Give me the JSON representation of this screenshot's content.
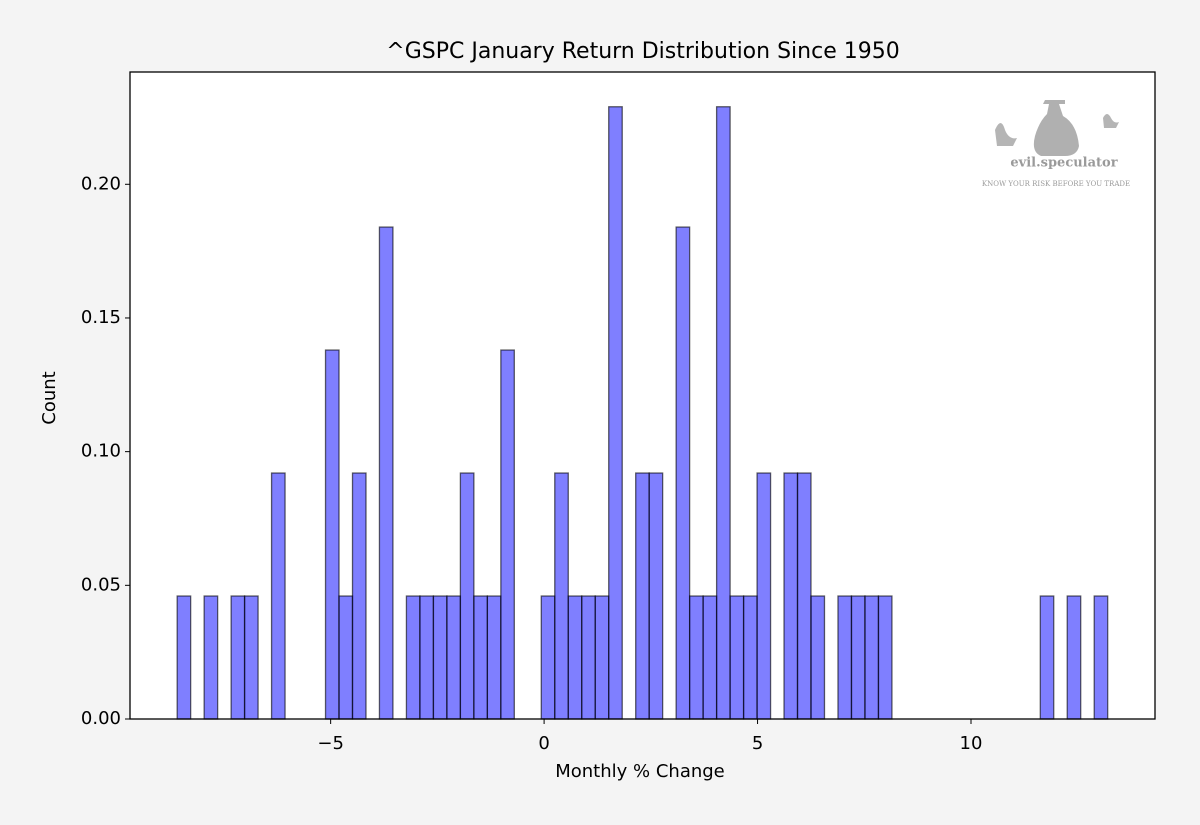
{
  "chart_data": {
    "type": "histogram",
    "title": "^GSPC January Return Distribution Since 1950",
    "x_label": "Monthly % Change",
    "y_label": "Count",
    "watermark": {
      "brand": "evil.speculator",
      "tagline": "KNOW YOUR RISK BEFORE YOU TRADE"
    },
    "color": "#0000ff",
    "edge_color": "#000000",
    "bins": [
      -8.595,
      -8.279,
      -7.963,
      -7.647,
      -7.331,
      -7.016,
      -6.7,
      -6.384,
      -6.068,
      -5.752,
      -5.436,
      -5.12,
      -4.804,
      -4.488,
      -4.172,
      -3.857,
      -3.541,
      -3.225,
      -2.909,
      -2.593,
      -2.277,
      -1.961,
      -1.645,
      -1.329,
      -1.013,
      -0.698,
      -0.382,
      -0.066,
      0.25,
      0.566,
      0.882,
      1.198,
      1.514,
      1.83,
      2.146,
      2.461,
      2.777,
      3.093,
      3.409,
      3.725,
      4.041,
      4.357,
      4.673,
      4.989,
      5.305,
      5.62,
      5.936,
      6.252,
      6.568,
      6.884,
      7.2,
      7.516,
      7.832,
      8.148,
      8.464,
      8.779,
      9.095,
      9.411,
      9.727,
      10.043,
      10.359,
      10.675,
      10.991,
      11.307,
      11.623,
      11.938,
      12.254,
      12.57,
      12.886,
      13.202
    ],
    "values": [
      0.046,
      0,
      0.046,
      0,
      0.046,
      0.046,
      0,
      0.092,
      0,
      0,
      0,
      0.138,
      0.046,
      0.092,
      0,
      0.184,
      0,
      0.046,
      0.046,
      0.046,
      0.046,
      0.092,
      0.046,
      0.046,
      0.138,
      0,
      0,
      0.046,
      0.092,
      0.046,
      0.046,
      0.046,
      0.229,
      0,
      0.092,
      0.092,
      0,
      0.184,
      0.046,
      0.046,
      0.229,
      0.046,
      0.046,
      0.092,
      0,
      0.092,
      0.092,
      0.046,
      0,
      0.046,
      0.046,
      0.046,
      0.046,
      0,
      0,
      0,
      0,
      0,
      0,
      0,
      0,
      0,
      0,
      0,
      0.046,
      0,
      0.046,
      0,
      0.046
    ],
    "xlim": [
      -9.7,
      14.31
    ],
    "ylim": [
      0,
      0.242
    ],
    "xticks": [
      {
        "value": -5,
        "label": "−5"
      },
      0,
      5,
      10
    ],
    "yticks": [
      {
        "value": 0,
        "label": "0.00"
      },
      {
        "value": 0.05,
        "label": "0.05"
      },
      {
        "value": 0.1,
        "label": "0.10"
      },
      {
        "value": 0.15,
        "label": "0.15"
      },
      {
        "value": 0.2,
        "label": "0.20"
      }
    ]
  }
}
